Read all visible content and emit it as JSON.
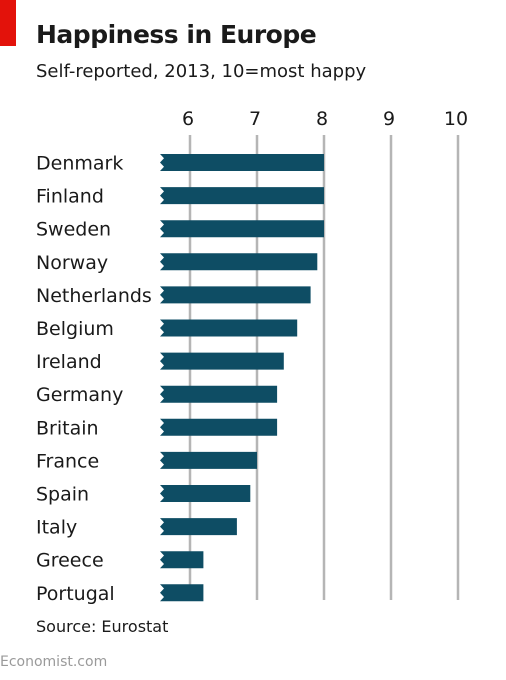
{
  "header": {
    "title": "Happiness in Europe",
    "subtitle": "Self-reported, 2013, 10=most happy"
  },
  "footer": {
    "source": "Source: Eurostat",
    "brand": "Economist.com"
  },
  "colors": {
    "bar": "#0e4d64",
    "accent": "#e3120b",
    "grid": "#b5b5b5"
  },
  "chart_data": {
    "type": "bar",
    "orientation": "horizontal",
    "title": "Happiness in Europe",
    "subtitle": "Self-reported, 2013, 10=most happy",
    "categories": [
      "Denmark",
      "Finland",
      "Sweden",
      "Norway",
      "Netherlands",
      "Belgium",
      "Ireland",
      "Germany",
      "Britain",
      "France",
      "Spain",
      "Italy",
      "Greece",
      "Portugal"
    ],
    "values": [
      8.0,
      8.0,
      8.0,
      7.9,
      7.8,
      7.6,
      7.4,
      7.3,
      7.3,
      7.0,
      6.9,
      6.7,
      6.2,
      6.2
    ],
    "xlim": [
      5.55,
      10
    ],
    "xticks": [
      "6",
      "7",
      "8",
      "9",
      "10"
    ],
    "axis_break": true,
    "grid": true,
    "xlabel": "",
    "ylabel": ""
  }
}
